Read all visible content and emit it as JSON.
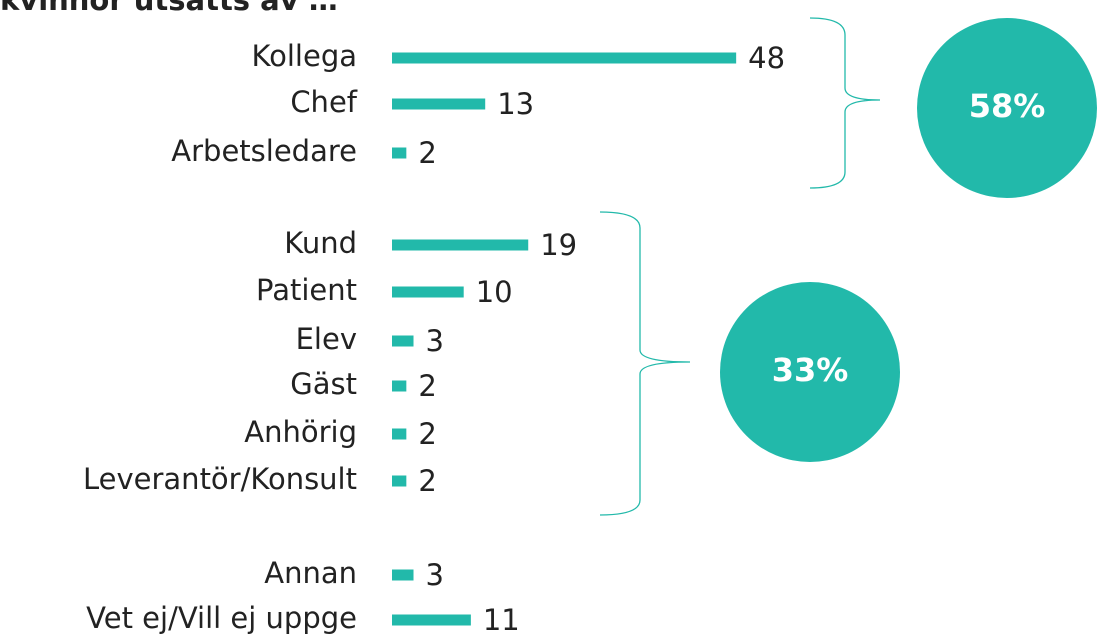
{
  "chart_data": {
    "type": "bar",
    "orientation": "horizontal",
    "title": "kvinnor utsatts av …",
    "categories": [
      "Kollega",
      "Chef",
      "Arbetsledare",
      "Kund",
      "Patient",
      "Elev",
      "Gäst",
      "Anhörig",
      "Leverantör/Konsult",
      "Annan",
      "Vet ej/Vill ej uppge"
    ],
    "values": [
      48,
      13,
      2,
      19,
      10,
      3,
      2,
      2,
      2,
      3,
      11
    ],
    "color": "#22b9aa",
    "group_shares": [
      58,
      33
    ],
    "group_share_labels": [
      "58%",
      "33%"
    ]
  }
}
